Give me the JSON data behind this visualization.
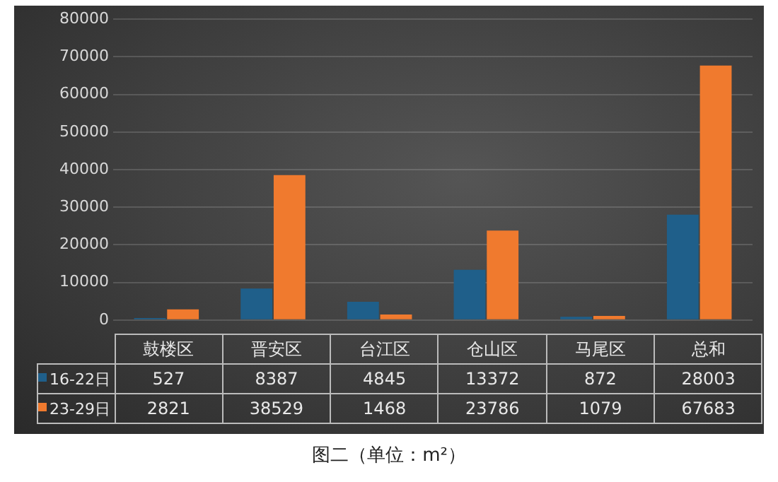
{
  "chart_data": {
    "type": "bar",
    "categories": [
      "鼓楼区",
      "晋安区",
      "台江区",
      "仓山区",
      "马尾区",
      "总和"
    ],
    "series": [
      {
        "name": "16-22日",
        "color": "#1f5f8a",
        "values": [
          527,
          8387,
          4845,
          13372,
          872,
          28003
        ]
      },
      {
        "name": "23-29日",
        "color": "#f07a2e",
        "values": [
          2821,
          38529,
          1468,
          23786,
          1079,
          67683
        ]
      }
    ],
    "ylim": [
      0,
      80000
    ],
    "yticks": [
      0,
      10000,
      20000,
      30000,
      40000,
      50000,
      60000,
      70000,
      80000
    ],
    "grid": "y",
    "legend": "bottom",
    "data_labels": true,
    "annotations": [
      "图二（单位：m²）"
    ]
  }
}
